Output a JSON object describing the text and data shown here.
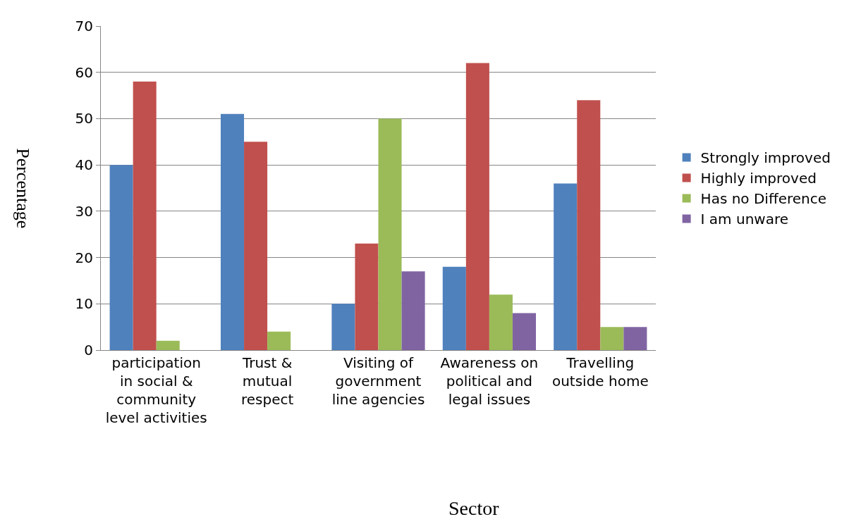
{
  "chart_data": {
    "type": "bar",
    "xlabel": "Sector",
    "ylabel": "Percentage",
    "categories": [
      "participation\nin social &\ncommunity\nlevel activities",
      "Trust &\nmutual\nrespect",
      "Visiting of\ngovernment\nline agencies",
      "Awareness on\npolitical and\nlegal issues",
      "Travelling\noutside home"
    ],
    "series": [
      {
        "name": "Strongly improved",
        "color": "#4f81bd",
        "values": [
          40,
          51,
          10,
          18,
          36
        ]
      },
      {
        "name": "Highly improved",
        "color": "#c0504d",
        "values": [
          58,
          45,
          23,
          62,
          54
        ]
      },
      {
        "name": "Has no Difference",
        "color": "#9bbb59",
        "values": [
          2,
          4,
          50,
          12,
          5
        ]
      },
      {
        "name": "I am unware",
        "color": "#8064a2",
        "values": [
          null,
          null,
          17,
          8,
          5
        ]
      }
    ],
    "ylim": [
      0,
      70
    ],
    "yticks": [
      0,
      10,
      20,
      30,
      40,
      50,
      60,
      70
    ],
    "grid": "y",
    "legend": "right"
  }
}
